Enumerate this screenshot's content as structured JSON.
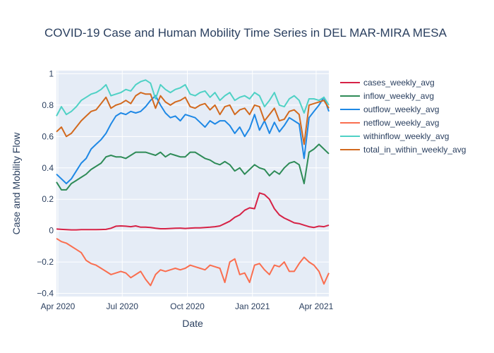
{
  "chart_data": {
    "type": "line",
    "title": "COVID-19 Case and Human Mobility Time Series in DEL MAR-MIRA MESA",
    "xlabel": "Date",
    "ylabel": "Case and Mobility Flow",
    "x_ticks": [
      "Apr 2020",
      "Jul 2020",
      "Oct 2020",
      "Jan 2021",
      "Apr 2021"
    ],
    "y_ticks": [
      "1",
      "0.8",
      "0.6",
      "0.4",
      "0.2",
      "0",
      "−0.2",
      "−0.4"
    ],
    "xlim": [
      "2020-03-30",
      "2021-04-19"
    ],
    "ylim": [
      -0.42,
      1.02
    ],
    "grid": true,
    "legend_position": "right",
    "dates": [
      "2020-03-30",
      "2020-04-06",
      "2020-04-13",
      "2020-04-20",
      "2020-04-27",
      "2020-05-04",
      "2020-05-11",
      "2020-05-18",
      "2020-05-25",
      "2020-06-01",
      "2020-06-08",
      "2020-06-15",
      "2020-06-22",
      "2020-06-29",
      "2020-07-06",
      "2020-07-13",
      "2020-07-20",
      "2020-07-27",
      "2020-08-03",
      "2020-08-10",
      "2020-08-17",
      "2020-08-24",
      "2020-08-31",
      "2020-09-07",
      "2020-09-14",
      "2020-09-21",
      "2020-09-28",
      "2020-10-05",
      "2020-10-12",
      "2020-10-19",
      "2020-10-26",
      "2020-11-02",
      "2020-11-09",
      "2020-11-16",
      "2020-11-23",
      "2020-11-30",
      "2020-12-07",
      "2020-12-14",
      "2020-12-21",
      "2020-12-28",
      "2021-01-04",
      "2021-01-11",
      "2021-01-18",
      "2021-01-25",
      "2021-02-01",
      "2021-02-08",
      "2021-02-15",
      "2021-02-22",
      "2021-03-01",
      "2021-03-08",
      "2021-03-15",
      "2021-03-22",
      "2021-03-29",
      "2021-04-05",
      "2021-04-12",
      "2021-04-19"
    ],
    "series": [
      {
        "name": "cases_weekly_avg",
        "color": "#d62246",
        "values": [
          0.01,
          0.008,
          0.006,
          0.005,
          0.005,
          0.006,
          0.006,
          0.006,
          0.006,
          0.007,
          0.008,
          0.015,
          0.028,
          0.03,
          0.028,
          0.025,
          0.03,
          0.022,
          0.022,
          0.02,
          0.015,
          0.012,
          0.012,
          0.014,
          0.015,
          0.016,
          0.014,
          0.016,
          0.018,
          0.018,
          0.02,
          0.022,
          0.025,
          0.03,
          0.045,
          0.06,
          0.085,
          0.1,
          0.13,
          0.145,
          0.14,
          0.24,
          0.23,
          0.2,
          0.14,
          0.1,
          0.08,
          0.065,
          0.05,
          0.045,
          0.035,
          0.025,
          0.02,
          0.028,
          0.025,
          0.035
        ]
      },
      {
        "name": "inflow_weekly_avg",
        "color": "#2e8b57",
        "values": [
          0.31,
          0.26,
          0.26,
          0.3,
          0.32,
          0.34,
          0.36,
          0.39,
          0.41,
          0.43,
          0.47,
          0.48,
          0.47,
          0.47,
          0.46,
          0.48,
          0.5,
          0.5,
          0.5,
          0.49,
          0.48,
          0.5,
          0.47,
          0.49,
          0.48,
          0.47,
          0.47,
          0.5,
          0.5,
          0.48,
          0.46,
          0.45,
          0.43,
          0.42,
          0.44,
          0.42,
          0.38,
          0.4,
          0.36,
          0.39,
          0.42,
          0.4,
          0.39,
          0.35,
          0.38,
          0.36,
          0.4,
          0.43,
          0.44,
          0.42,
          0.3,
          0.5,
          0.52,
          0.55,
          0.52,
          0.49
        ]
      },
      {
        "name": "outflow_weekly_avg",
        "color": "#1e88e5",
        "values": [
          0.36,
          0.33,
          0.3,
          0.33,
          0.38,
          0.43,
          0.46,
          0.52,
          0.55,
          0.58,
          0.62,
          0.68,
          0.73,
          0.75,
          0.74,
          0.76,
          0.75,
          0.76,
          0.79,
          0.83,
          0.86,
          0.8,
          0.75,
          0.72,
          0.73,
          0.7,
          0.74,
          0.73,
          0.72,
          0.69,
          0.66,
          0.7,
          0.68,
          0.7,
          0.7,
          0.67,
          0.62,
          0.66,
          0.6,
          0.65,
          0.74,
          0.64,
          0.7,
          0.62,
          0.69,
          0.63,
          0.67,
          0.72,
          0.7,
          0.68,
          0.46,
          0.72,
          0.76,
          0.8,
          0.85,
          0.76
        ]
      },
      {
        "name": "netflow_weekly_avg",
        "color": "#fa6e4f",
        "values": [
          -0.05,
          -0.07,
          -0.08,
          -0.1,
          -0.12,
          -0.14,
          -0.19,
          -0.21,
          -0.22,
          -0.24,
          -0.26,
          -0.28,
          -0.27,
          -0.26,
          -0.27,
          -0.3,
          -0.28,
          -0.26,
          -0.31,
          -0.35,
          -0.28,
          -0.25,
          -0.26,
          -0.25,
          -0.24,
          -0.25,
          -0.24,
          -0.22,
          -0.23,
          -0.24,
          -0.25,
          -0.22,
          -0.23,
          -0.24,
          -0.33,
          -0.2,
          -0.18,
          -0.28,
          -0.27,
          -0.33,
          -0.22,
          -0.21,
          -0.25,
          -0.28,
          -0.22,
          -0.23,
          -0.2,
          -0.26,
          -0.26,
          -0.21,
          -0.17,
          -0.2,
          -0.22,
          -0.26,
          -0.34,
          -0.27
        ]
      },
      {
        "name": "withinflow_weekly_avg",
        "color": "#4fd1c5",
        "values": [
          0.73,
          0.79,
          0.74,
          0.76,
          0.79,
          0.83,
          0.85,
          0.87,
          0.88,
          0.9,
          0.93,
          0.86,
          0.87,
          0.88,
          0.9,
          0.89,
          0.93,
          0.95,
          0.96,
          0.94,
          0.84,
          0.93,
          0.9,
          0.88,
          0.9,
          0.91,
          0.93,
          0.87,
          0.86,
          0.88,
          0.89,
          0.85,
          0.88,
          0.83,
          0.86,
          0.88,
          0.83,
          0.85,
          0.86,
          0.84,
          0.88,
          0.86,
          0.79,
          0.83,
          0.88,
          0.8,
          0.79,
          0.84,
          0.86,
          0.83,
          0.75,
          0.84,
          0.84,
          0.83,
          0.85,
          0.8
        ]
      },
      {
        "name": "total_in_within_weekly_avg",
        "color": "#d2691e",
        "values": [
          0.63,
          0.66,
          0.6,
          0.62,
          0.66,
          0.7,
          0.73,
          0.76,
          0.77,
          0.81,
          0.85,
          0.78,
          0.8,
          0.81,
          0.83,
          0.81,
          0.86,
          0.88,
          0.87,
          0.87,
          0.78,
          0.86,
          0.82,
          0.8,
          0.82,
          0.83,
          0.85,
          0.79,
          0.78,
          0.8,
          0.81,
          0.77,
          0.8,
          0.74,
          0.79,
          0.8,
          0.74,
          0.77,
          0.78,
          0.74,
          0.8,
          0.79,
          0.7,
          0.74,
          0.78,
          0.7,
          0.71,
          0.76,
          0.77,
          0.74,
          0.55,
          0.8,
          0.81,
          0.82,
          0.83,
          0.78
        ]
      }
    ]
  }
}
